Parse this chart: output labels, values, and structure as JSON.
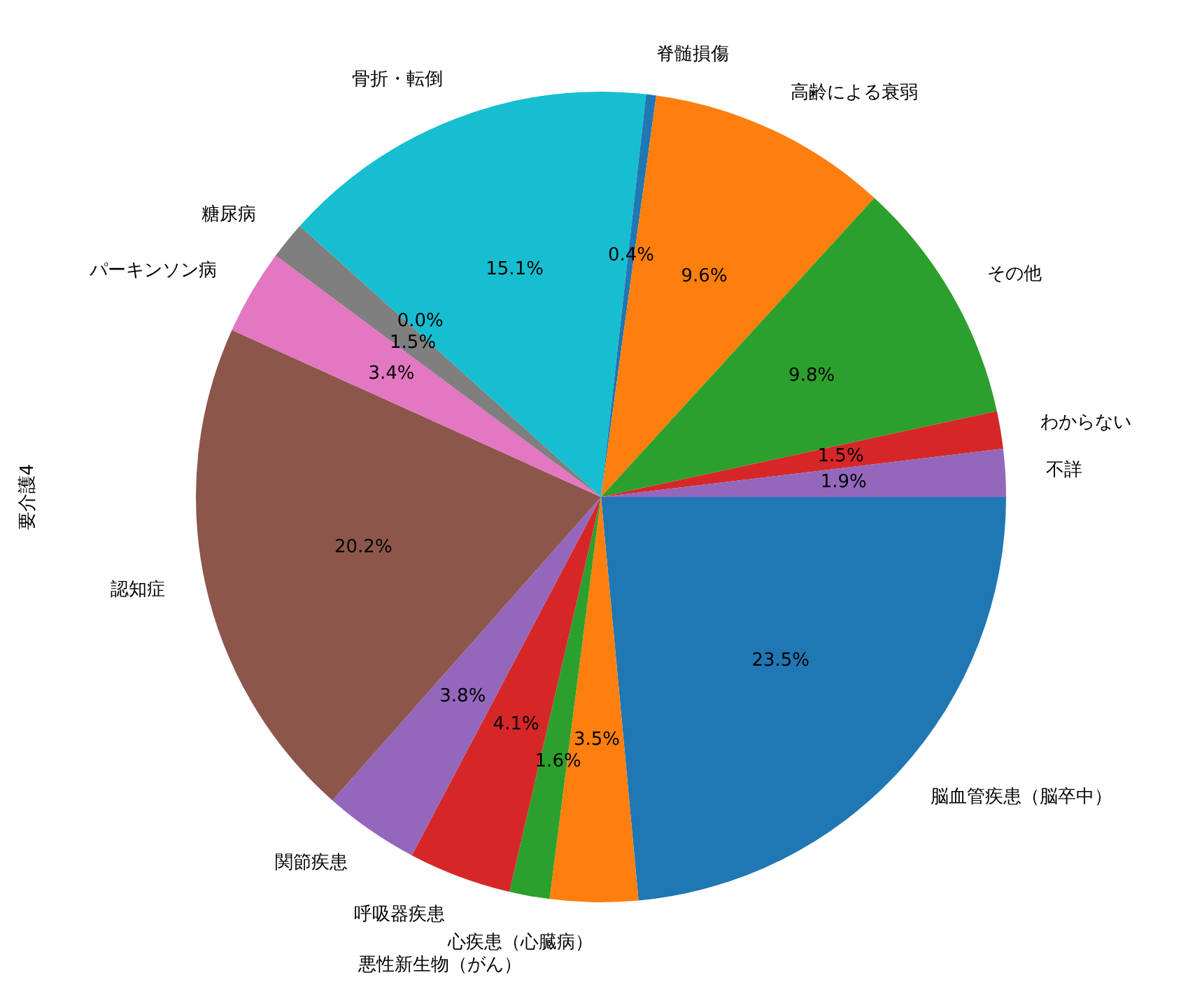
{
  "chart_data": {
    "type": "pie",
    "ylabel": "要介護4",
    "categories": [
      "脳血管疾患（脳卒中）",
      "心疾患（心臓病）",
      "悪性新生物（がん）",
      "呼吸器疾患",
      "関節疾患",
      "認知症",
      "パーキンソン病",
      "糖尿病",
      null,
      "骨折・転倒",
      "脊髄損傷",
      "高齢による衰弱",
      "その他",
      "わからない",
      "不詳"
    ],
    "values": [
      23.5,
      3.5,
      1.6,
      4.1,
      3.8,
      20.2,
      3.4,
      1.5,
      0.0,
      15.1,
      0.4,
      9.6,
      9.8,
      1.5,
      1.9
    ],
    "colors": [
      "#1f77b4",
      "#ff7f0e",
      "#2ca02c",
      "#d62728",
      "#9467bd",
      "#8c564b",
      "#e377c2",
      "#7f7f7f",
      "#bcbd22",
      "#17becf",
      "#1f77b4",
      "#ff7f0e",
      "#2ca02c",
      "#d62728",
      "#9467bd"
    ],
    "value_labels": [
      "23.5%",
      "3.5%",
      "1.6%",
      "4.1%",
      "3.8%",
      "20.2%",
      "3.4%",
      "1.5%",
      "0.0%",
      "15.1%",
      "0.4%",
      "9.6%",
      "9.8%",
      "1.5%",
      "1.9%"
    ],
    "legend": false
  }
}
